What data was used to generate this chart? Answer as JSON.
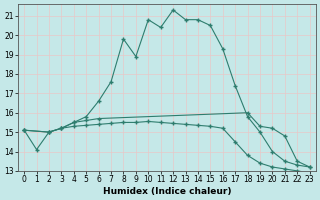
{
  "xlabel": "Humidex (Indice chaleur)",
  "background_color": "#c5e8e8",
  "grid_color": "#e8c8c8",
  "line_color": "#2e7d6e",
  "xlim": [
    -0.5,
    23.5
  ],
  "ylim": [
    13,
    21.6
  ],
  "yticks": [
    13,
    14,
    15,
    16,
    17,
    18,
    19,
    20,
    21
  ],
  "xticks": [
    0,
    1,
    2,
    3,
    4,
    5,
    6,
    7,
    8,
    9,
    10,
    11,
    12,
    13,
    14,
    15,
    16,
    17,
    18,
    19,
    20,
    21,
    22,
    23
  ],
  "series1_x": [
    0,
    1,
    2,
    3,
    4,
    5,
    6,
    7,
    8,
    9,
    10,
    11,
    12,
    13,
    14,
    15,
    16,
    17,
    18,
    19,
    20,
    21,
    22,
    23
  ],
  "series1_y": [
    15.1,
    14.1,
    15.0,
    15.2,
    15.5,
    15.8,
    16.6,
    17.6,
    19.8,
    18.9,
    20.8,
    20.4,
    21.3,
    20.8,
    20.8,
    20.5,
    19.3,
    17.4,
    15.8,
    15.0,
    14.0,
    13.5,
    13.3,
    13.2
  ],
  "series2_x": [
    0,
    2,
    3,
    4,
    5,
    6,
    18,
    19,
    20,
    21,
    22,
    23
  ],
  "series2_y": [
    15.1,
    15.0,
    15.2,
    15.5,
    15.6,
    15.7,
    16.0,
    15.3,
    15.2,
    14.8,
    13.5,
    13.2
  ],
  "series3_x": [
    0,
    2,
    3,
    4,
    5,
    6,
    7,
    8,
    9,
    10,
    11,
    12,
    13,
    14,
    15,
    16,
    17,
    18,
    19,
    20,
    21,
    22,
    23
  ],
  "series3_y": [
    15.1,
    15.0,
    15.2,
    15.3,
    15.35,
    15.4,
    15.45,
    15.5,
    15.5,
    15.55,
    15.5,
    15.45,
    15.4,
    15.35,
    15.3,
    15.2,
    14.5,
    13.8,
    13.4,
    13.2,
    13.1,
    13.0,
    12.9
  ]
}
